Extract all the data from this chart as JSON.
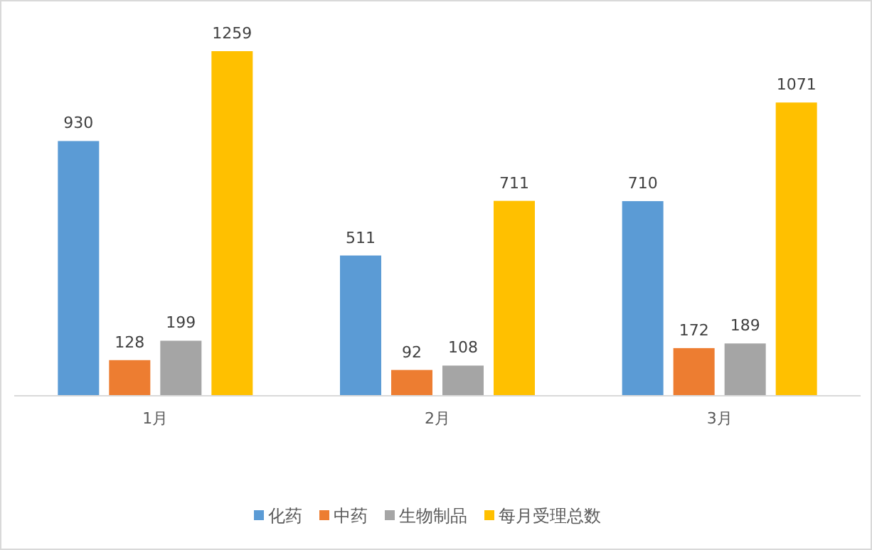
{
  "chart_data": {
    "type": "bar",
    "categories": [
      "1月",
      "2月",
      "3月"
    ],
    "series": [
      {
        "name": "化药",
        "color": "#5b9bd5",
        "values": [
          930,
          511,
          710
        ]
      },
      {
        "name": "中药",
        "color": "#ed7d31",
        "values": [
          128,
          92,
          172
        ]
      },
      {
        "name": "生物制品",
        "color": "#a5a5a5",
        "values": [
          199,
          108,
          189
        ]
      },
      {
        "name": "每月受理总数",
        "color": "#ffc000",
        "values": [
          1259,
          711,
          1071
        ]
      }
    ],
    "data_labels": true,
    "legend": "bottom",
    "tick_labels": "x"
  }
}
